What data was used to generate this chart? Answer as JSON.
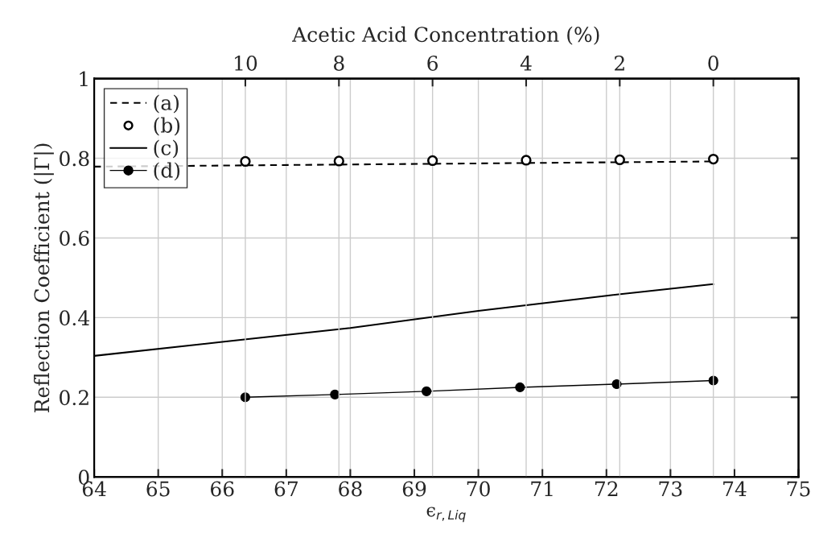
{
  "chart_data": {
    "type": "line",
    "xlabel": "ϵ$_{r,Liq}$",
    "ylabel": "Reflection Coefficient (|Γ|)",
    "x2label": "Acetic Acid Concentration (%)",
    "xlim": [
      64,
      75
    ],
    "xticks": [
      64,
      65,
      66,
      67,
      68,
      69,
      70,
      71,
      72,
      73,
      74,
      75
    ],
    "ylim": [
      0,
      1
    ],
    "yticks": [
      0,
      0.2,
      0.4,
      0.6,
      0.8,
      1
    ],
    "x2lim": [
      13.23,
      -1.82
    ],
    "x2ticks": [
      10,
      8,
      6,
      4,
      2,
      0
    ],
    "grid": true,
    "legend": "top left",
    "series": [
      {
        "name": "(a)",
        "color": "#000000",
        "line_style": "dashed",
        "marker": "none",
        "x": [
          64,
          73.67
        ],
        "values": [
          0.779,
          0.792
        ]
      },
      {
        "name": "(b)",
        "type": "scatter",
        "axis": "x2",
        "color": "#000000",
        "marker": "circle",
        "x": [
          10,
          8,
          6,
          4,
          2,
          0
        ],
        "values": [
          0.792,
          0.793,
          0.794,
          0.795,
          0.796,
          0.798
        ]
      },
      {
        "name": "(c)",
        "color": "#000000",
        "line_style": "solid",
        "marker": "none",
        "x": [
          64,
          66,
          68,
          70,
          72,
          73.67
        ],
        "values": [
          0.304,
          0.339,
          0.374,
          0.417,
          0.455,
          0.484
        ]
      },
      {
        "name": "(d)",
        "color": "#000000",
        "line_style": "solid",
        "marker": "circle",
        "x": [
          66.36,
          67.76,
          69.19,
          70.65,
          72.16,
          73.67
        ],
        "values": [
          0.2,
          0.207,
          0.215,
          0.225,
          0.233,
          0.242
        ]
      }
    ]
  }
}
